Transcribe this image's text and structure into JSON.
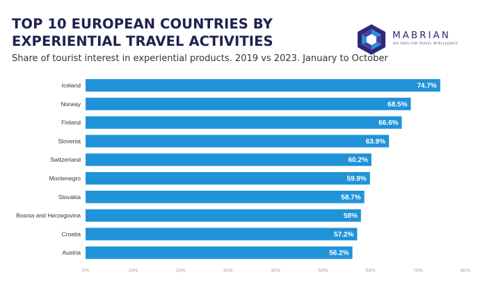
{
  "header": {
    "title": "TOP 10 EUROPEAN COUNTRIES BY EXPERIENTIAL TRAVEL ACTIVITIES",
    "subtitle": "Share of tourist interest in experiential products. 2019 vs 2023. January to October"
  },
  "logo": {
    "name": "MABRIAN",
    "tagline": "BIG DATA FOR TRAVEL INTELLIGENCE",
    "icon": "hexagon-logo-icon"
  },
  "colors": {
    "bar": "#2093d8",
    "title": "#1f2150",
    "logo": "#2d2a7a"
  },
  "chart_data": {
    "type": "bar",
    "orientation": "horizontal",
    "title": "TOP 10 EUROPEAN COUNTRIES BY EXPERIENTIAL TRAVEL ACTIVITIES",
    "categories": [
      "Iceland",
      "Norway",
      "Finland",
      "Slovenia",
      "Switzerland",
      "Montenegro",
      "Slovakia",
      "Bosnia and Herzegovina",
      "Croatia",
      "Austria"
    ],
    "values": [
      74.7,
      68.5,
      66.6,
      63.9,
      60.2,
      59.9,
      58.7,
      58,
      57.2,
      56.2
    ],
    "value_labels": [
      "74.7%",
      "68.5%",
      "66.6%",
      "63.9%",
      "60.2%",
      "59.9%",
      "58.7%",
      "58%",
      "57.2%",
      "56.2%"
    ],
    "xlim": [
      0,
      80
    ],
    "xticks": [
      0,
      10,
      20,
      30,
      40,
      50,
      60,
      70,
      80
    ],
    "xtick_labels": [
      "0%",
      "10%",
      "20%",
      "30%",
      "40%",
      "50%",
      "60%",
      "70%",
      "80%"
    ],
    "xlabel": "",
    "ylabel": "",
    "grid": false,
    "legend": "none"
  }
}
